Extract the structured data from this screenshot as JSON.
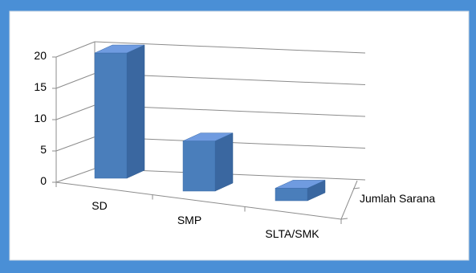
{
  "chart_data": {
    "type": "bar",
    "categories": [
      "SD",
      "SMP",
      "SLTA/SMK"
    ],
    "series": [
      {
        "name": "Jumlah Sarana",
        "values": [
          20,
          8,
          2
        ]
      }
    ],
    "ylim": [
      0,
      20
    ],
    "yticks": [
      "0",
      "5",
      "10",
      "15",
      "20"
    ],
    "title": "",
    "xlabel": "",
    "ylabel": "",
    "grid": true,
    "three_d": true,
    "bar_color": "#4a7ebb",
    "bar_top_color": "#6f9be0",
    "bar_side_color": "#3a67a0",
    "gridline_color": "#8c8c8c"
  }
}
